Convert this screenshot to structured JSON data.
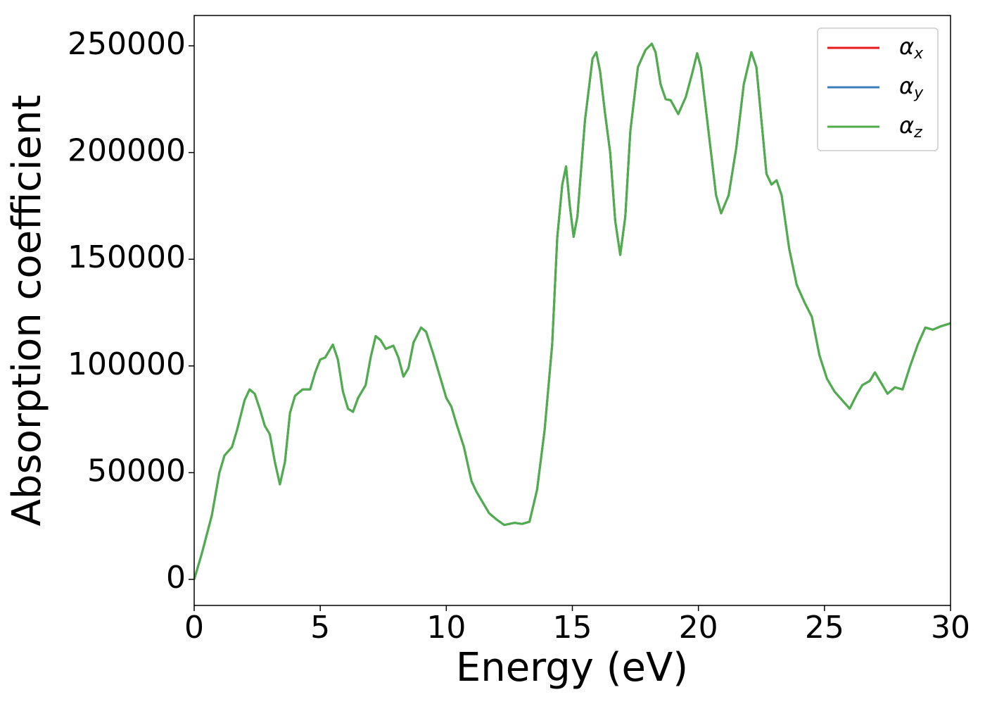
{
  "chart_data": {
    "type": "line",
    "xlabel": "Energy (eV)",
    "ylabel": "Absorption coefficient",
    "x": [
      0,
      0.3,
      0.7,
      1.0,
      1.2,
      1.5,
      1.7,
      2.0,
      2.2,
      2.4,
      2.6,
      2.8,
      3.0,
      3.2,
      3.4,
      3.6,
      3.8,
      4.0,
      4.3,
      4.6,
      4.8,
      5.0,
      5.2,
      5.5,
      5.7,
      5.9,
      6.1,
      6.3,
      6.5,
      6.8,
      7.0,
      7.2,
      7.4,
      7.6,
      7.9,
      8.1,
      8.3,
      8.5,
      8.7,
      9.0,
      9.2,
      9.5,
      9.7,
      10.0,
      10.2,
      10.4,
      10.7,
      11.0,
      11.2,
      11.4,
      11.7,
      12.0,
      12.3,
      12.7,
      13.0,
      13.3,
      13.6,
      13.9,
      14.2,
      14.4,
      14.6,
      14.75,
      14.9,
      15.05,
      15.2,
      15.5,
      15.8,
      15.95,
      16.1,
      16.3,
      16.5,
      16.7,
      16.9,
      17.1,
      17.3,
      17.6,
      17.9,
      18.15,
      18.3,
      18.5,
      18.7,
      18.9,
      19.2,
      19.5,
      19.75,
      19.95,
      20.1,
      20.4,
      20.7,
      20.9,
      21.2,
      21.5,
      21.8,
      22.1,
      22.3,
      22.5,
      22.7,
      22.9,
      23.1,
      23.3,
      23.6,
      23.9,
      24.2,
      24.5,
      24.8,
      25.1,
      25.4,
      25.7,
      26.0,
      26.3,
      26.5,
      26.8,
      27.0,
      27.2,
      27.5,
      27.8,
      28.1,
      28.4,
      28.7,
      29.0,
      29.3,
      29.6,
      30.0
    ],
    "series": [
      {
        "name": "αx",
        "color": "#e41a1c",
        "values": [
          0,
          12000,
          30000,
          50000,
          58000,
          62000,
          70000,
          84000,
          89000,
          87000,
          80000,
          72000,
          68000,
          55000,
          44500,
          55000,
          78000,
          86000,
          89000,
          89000,
          97000,
          103000,
          104000,
          110000,
          103000,
          88000,
          80000,
          78500,
          85000,
          91000,
          104000,
          114000,
          112000,
          108000,
          109500,
          104000,
          95000,
          99000,
          111000,
          118000,
          116000,
          105000,
          97000,
          85000,
          81000,
          73000,
          62000,
          46000,
          41000,
          37000,
          31000,
          28000,
          25500,
          26500,
          26000,
          27000,
          42000,
          70000,
          110000,
          160000,
          185000,
          193500,
          175000,
          160500,
          170000,
          215000,
          244000,
          247000,
          238000,
          218000,
          200000,
          168000,
          152000,
          170000,
          210000,
          240000,
          248000,
          251000,
          247000,
          232000,
          225000,
          224500,
          218000,
          226000,
          237000,
          246500,
          240000,
          210000,
          180000,
          171500,
          180000,
          202000,
          232000,
          247000,
          240000,
          215000,
          190000,
          185000,
          187000,
          180000,
          155000,
          138000,
          130000,
          123000,
          105000,
          94000,
          88000,
          84000,
          80000,
          87000,
          91000,
          93000,
          97000,
          93000,
          87000,
          90000,
          89000,
          100000,
          110000,
          118000,
          117000,
          118500,
          120000
        ]
      },
      {
        "name": "αy",
        "color": "#377eb8",
        "values": [
          0,
          12000,
          30000,
          50000,
          58000,
          62000,
          70000,
          84000,
          89000,
          87000,
          80000,
          72000,
          68000,
          55000,
          44500,
          55000,
          78000,
          86000,
          89000,
          89000,
          97000,
          103000,
          104000,
          110000,
          103000,
          88000,
          80000,
          78500,
          85000,
          91000,
          104000,
          114000,
          112000,
          108000,
          109500,
          104000,
          95000,
          99000,
          111000,
          118000,
          116000,
          105000,
          97000,
          85000,
          81000,
          73000,
          62000,
          46000,
          41000,
          37000,
          31000,
          28000,
          25500,
          26500,
          26000,
          27000,
          42000,
          70000,
          110000,
          160000,
          185000,
          193500,
          175000,
          160500,
          170000,
          215000,
          244000,
          247000,
          238000,
          218000,
          200000,
          168000,
          152000,
          170000,
          210000,
          240000,
          248000,
          251000,
          247000,
          232000,
          225000,
          224500,
          218000,
          226000,
          237000,
          246500,
          240000,
          210000,
          180000,
          171500,
          180000,
          202000,
          232000,
          247000,
          240000,
          215000,
          190000,
          185000,
          187000,
          180000,
          155000,
          138000,
          130000,
          123000,
          105000,
          94000,
          88000,
          84000,
          80000,
          87000,
          91000,
          93000,
          97000,
          93000,
          87000,
          90000,
          89000,
          100000,
          110000,
          118000,
          117000,
          118500,
          120000
        ]
      },
      {
        "name": "αz",
        "color": "#4daf4a",
        "values": [
          0,
          12000,
          30000,
          50000,
          58000,
          62000,
          70000,
          84000,
          89000,
          87000,
          80000,
          72000,
          68000,
          55000,
          44500,
          55000,
          78000,
          86000,
          89000,
          89000,
          97000,
          103000,
          104000,
          110000,
          103000,
          88000,
          80000,
          78500,
          85000,
          91000,
          104000,
          114000,
          112000,
          108000,
          109500,
          104000,
          95000,
          99000,
          111000,
          118000,
          116000,
          105000,
          97000,
          85000,
          81000,
          73000,
          62000,
          46000,
          41000,
          37000,
          31000,
          28000,
          25500,
          26500,
          26000,
          27000,
          42000,
          70000,
          110000,
          160000,
          185000,
          193500,
          175000,
          160500,
          170000,
          215000,
          244000,
          247000,
          238000,
          218000,
          200000,
          168000,
          152000,
          170000,
          210000,
          240000,
          248000,
          251000,
          247000,
          232000,
          225000,
          224500,
          218000,
          226000,
          237000,
          246500,
          240000,
          210000,
          180000,
          171500,
          180000,
          202000,
          232000,
          247000,
          240000,
          215000,
          190000,
          185000,
          187000,
          180000,
          155000,
          138000,
          130000,
          123000,
          105000,
          94000,
          88000,
          84000,
          80000,
          87000,
          91000,
          93000,
          97000,
          93000,
          87000,
          90000,
          89000,
          100000,
          110000,
          118000,
          117000,
          118500,
          120000
        ]
      }
    ],
    "xlim": [
      0,
      30
    ],
    "xticks": [
      0,
      5,
      10,
      15,
      20,
      25,
      30
    ],
    "ylim": [
      -12200,
      264200
    ],
    "yticks": [
      0,
      50000,
      100000,
      150000,
      200000,
      250000
    ],
    "grid": false,
    "legend": "upper right"
  }
}
